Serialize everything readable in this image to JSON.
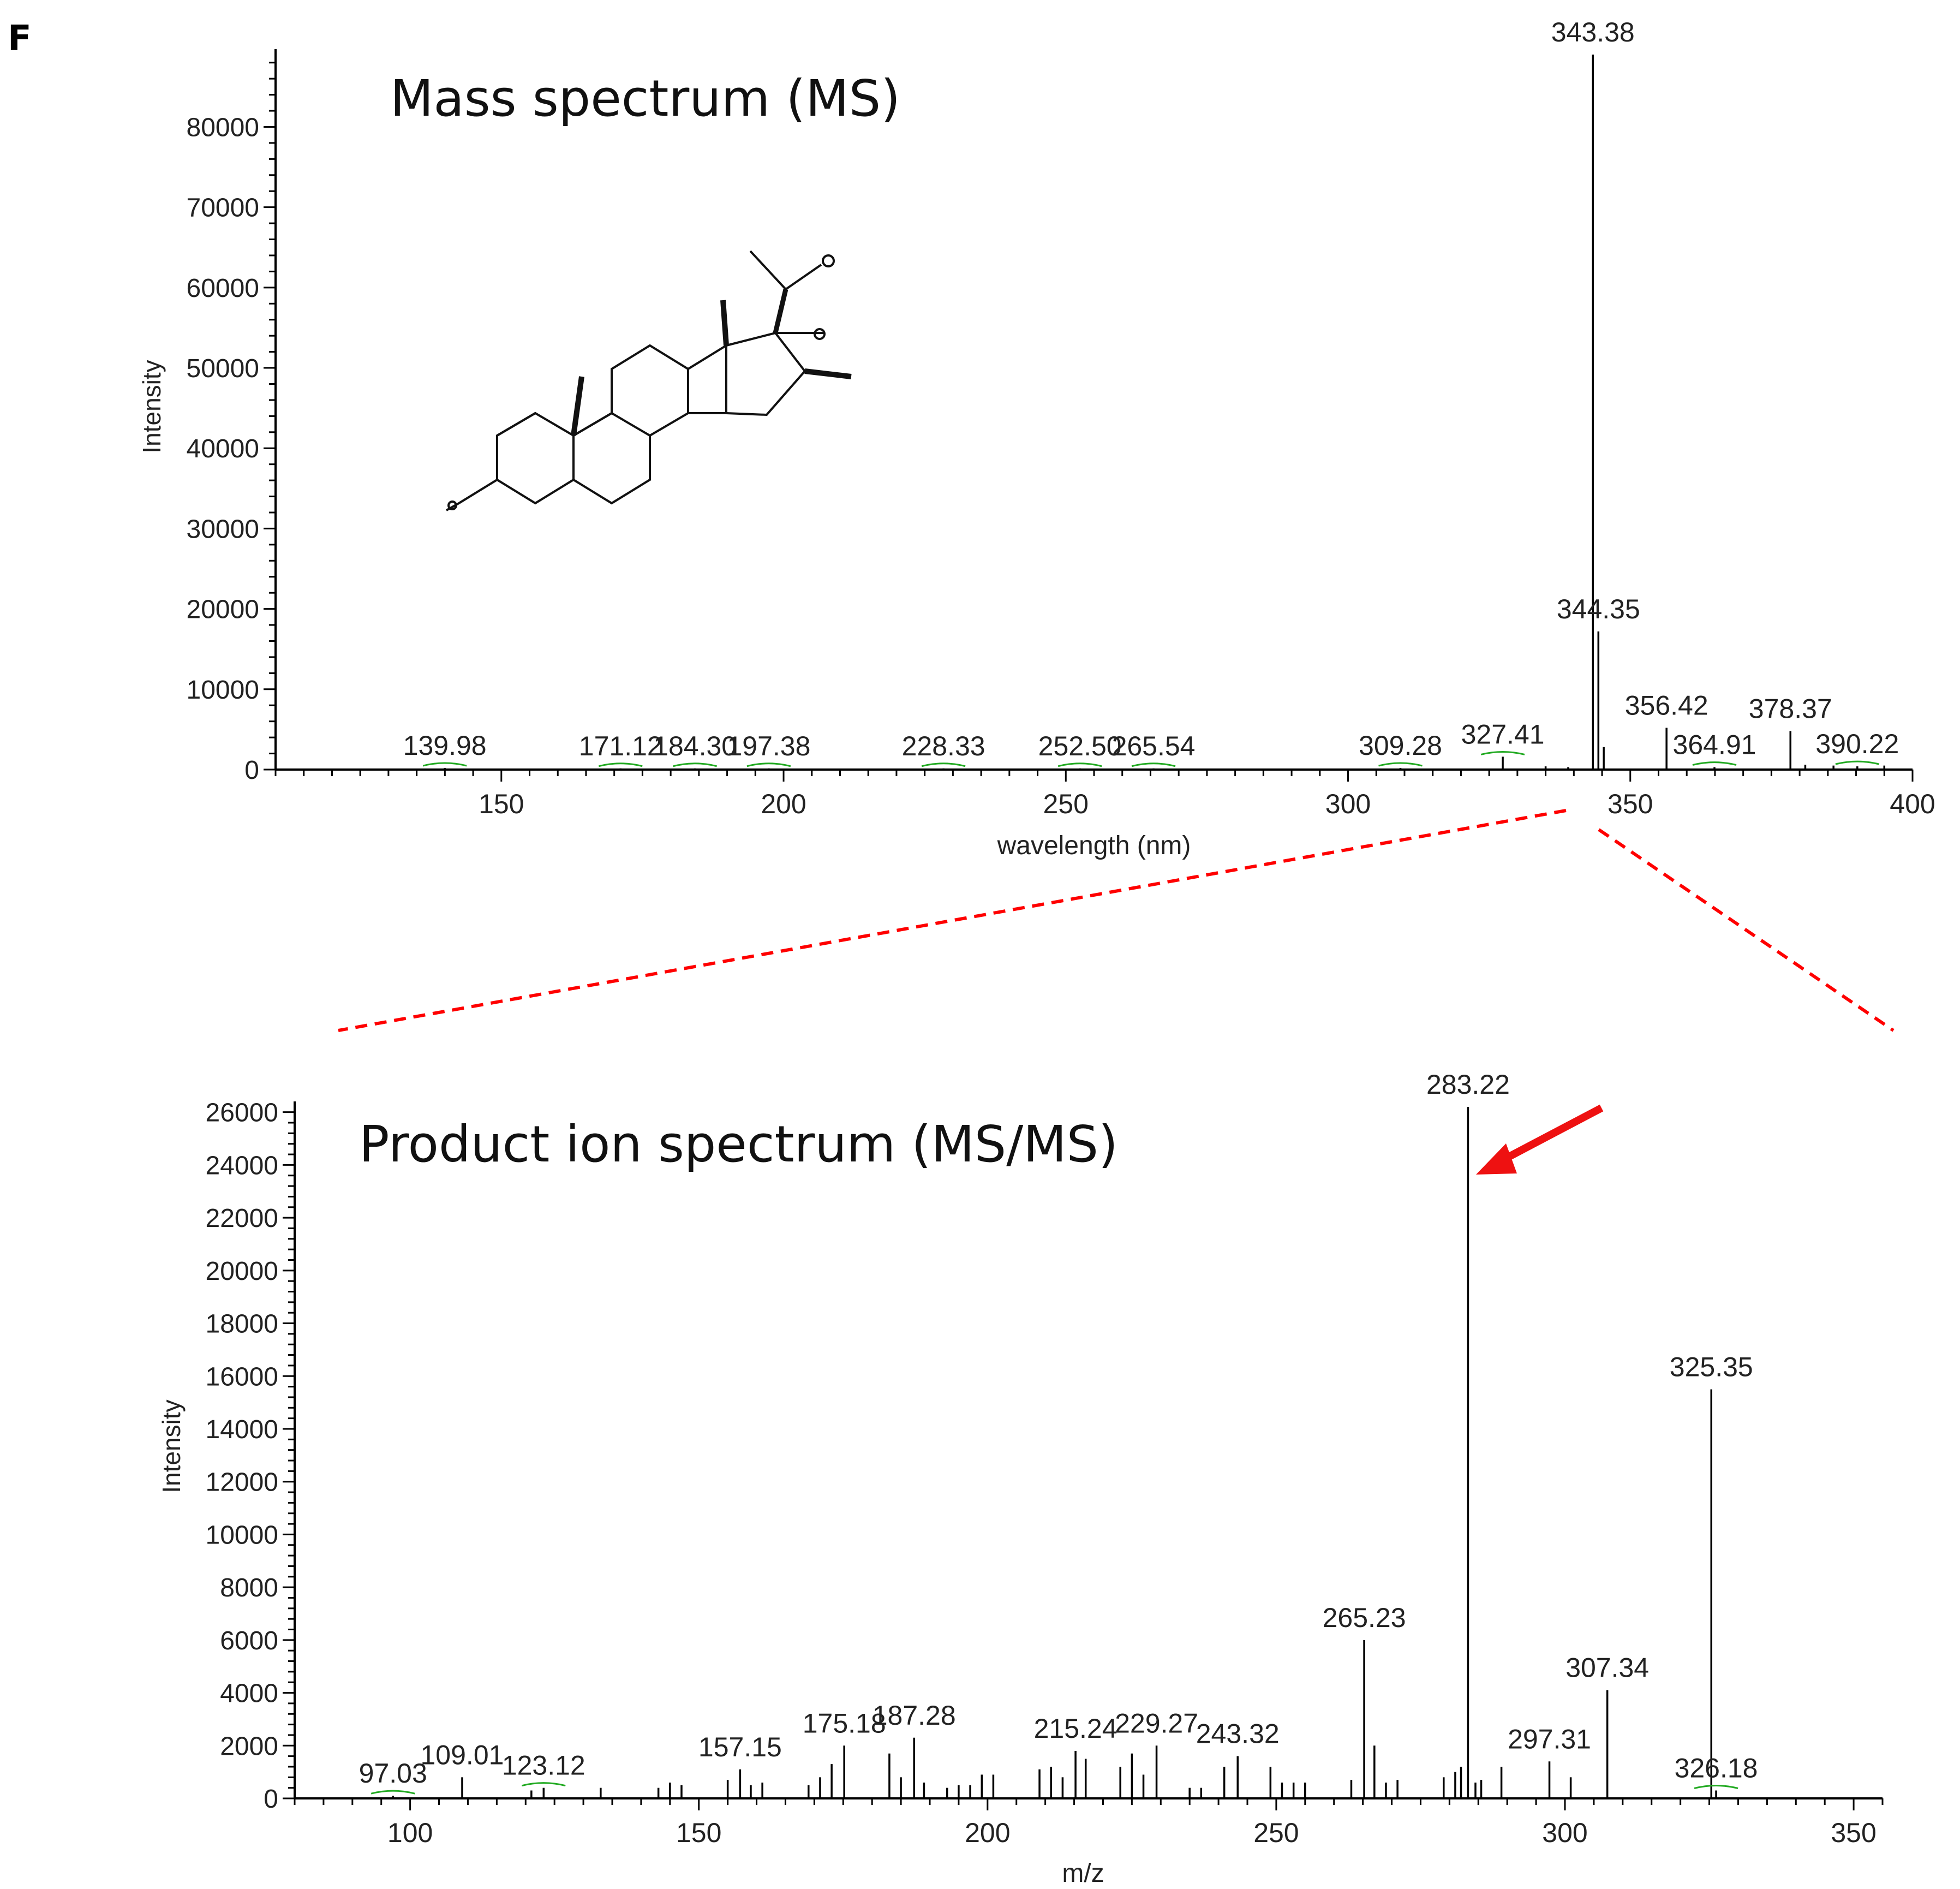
{
  "panel_label": "F",
  "colors": {
    "axis": "#000000",
    "peak": "#000000",
    "annotation_bracket": "#22aa22",
    "zoom_line": "#ff0000",
    "arrow": "#ee1111"
  },
  "chart_data": [
    {
      "type": "bar",
      "title": "Mass spectrum (MS)",
      "xlabel": "wavelength (nm)",
      "ylabel": "Intensity",
      "xlim": [
        110,
        400
      ],
      "ylim": [
        0,
        89000
      ],
      "xticks": [
        "150",
        "200",
        "250",
        "300",
        "350",
        "400"
      ],
      "yticks": [
        "0",
        "10000",
        "20000",
        "30000",
        "40000",
        "50000",
        "60000",
        "70000",
        "80000"
      ],
      "grid": false,
      "structure_icon": "steroid-epoxide-structure",
      "peaks": [
        {
          "x": 139.98,
          "y": 200,
          "label": "139.98"
        },
        {
          "x": 171.12,
          "y": 150,
          "label": "171.12"
        },
        {
          "x": 184.3,
          "y": 150,
          "label": "184.30"
        },
        {
          "x": 197.38,
          "y": 150,
          "label": "197.38"
        },
        {
          "x": 228.33,
          "y": 150,
          "label": "228.33"
        },
        {
          "x": 252.5,
          "y": 150,
          "label": "252.50"
        },
        {
          "x": 265.54,
          "y": 150,
          "label": "265.54"
        },
        {
          "x": 309.28,
          "y": 200,
          "label": "309.28"
        },
        {
          "x": 327.41,
          "y": 1600,
          "label": "327.41"
        },
        {
          "x": 335.0,
          "y": 400,
          "label": ""
        },
        {
          "x": 339.0,
          "y": 300,
          "label": ""
        },
        {
          "x": 343.38,
          "y": 89000,
          "label": "343.38"
        },
        {
          "x": 344.35,
          "y": 17200,
          "label": "344.35"
        },
        {
          "x": 345.3,
          "y": 2800,
          "label": ""
        },
        {
          "x": 356.42,
          "y": 5200,
          "label": "356.42"
        },
        {
          "x": 364.91,
          "y": 300,
          "label": "364.91"
        },
        {
          "x": 378.37,
          "y": 4800,
          "label": "378.37"
        },
        {
          "x": 381.0,
          "y": 600,
          "label": ""
        },
        {
          "x": 386.0,
          "y": 500,
          "label": ""
        },
        {
          "x": 390.22,
          "y": 400,
          "label": "390.22"
        },
        {
          "x": 395.0,
          "y": 500,
          "label": ""
        }
      ]
    },
    {
      "type": "bar",
      "title": "Product ion spectrum (MS/MS)",
      "xlabel": "m/z",
      "ylabel": "Intensity",
      "xlim": [
        80,
        355
      ],
      "ylim": [
        0,
        26200
      ],
      "xticks": [
        "100",
        "150",
        "200",
        "250",
        "300",
        "350"
      ],
      "yticks": [
        "0",
        "2000",
        "4000",
        "6000",
        "8000",
        "10000",
        "12000",
        "14000",
        "16000",
        "18000",
        "20000",
        "22000",
        "24000",
        "26000"
      ],
      "grid": false,
      "peaks": [
        {
          "x": 97.03,
          "y": 100,
          "label": "97.03"
        },
        {
          "x": 109.01,
          "y": 800,
          "label": "109.01"
        },
        {
          "x": 121.0,
          "y": 300,
          "label": ""
        },
        {
          "x": 123.12,
          "y": 400,
          "label": "123.12"
        },
        {
          "x": 133.0,
          "y": 400,
          "label": ""
        },
        {
          "x": 143.0,
          "y": 400,
          "label": ""
        },
        {
          "x": 145.0,
          "y": 600,
          "label": ""
        },
        {
          "x": 147.0,
          "y": 500,
          "label": ""
        },
        {
          "x": 155.0,
          "y": 700,
          "label": ""
        },
        {
          "x": 157.15,
          "y": 1100,
          "label": "157.15"
        },
        {
          "x": 159.0,
          "y": 500,
          "label": ""
        },
        {
          "x": 161.0,
          "y": 600,
          "label": ""
        },
        {
          "x": 169.0,
          "y": 500,
          "label": ""
        },
        {
          "x": 171.0,
          "y": 800,
          "label": ""
        },
        {
          "x": 173.0,
          "y": 1300,
          "label": ""
        },
        {
          "x": 175.18,
          "y": 2000,
          "label": "175.18"
        },
        {
          "x": 183.0,
          "y": 1700,
          "label": ""
        },
        {
          "x": 185.0,
          "y": 800,
          "label": ""
        },
        {
          "x": 187.28,
          "y": 2300,
          "label": "187.28"
        },
        {
          "x": 189.0,
          "y": 600,
          "label": ""
        },
        {
          "x": 193.0,
          "y": 400,
          "label": ""
        },
        {
          "x": 195.0,
          "y": 500,
          "label": ""
        },
        {
          "x": 197.0,
          "y": 500,
          "label": ""
        },
        {
          "x": 199.0,
          "y": 900,
          "label": ""
        },
        {
          "x": 201.0,
          "y": 900,
          "label": ""
        },
        {
          "x": 209.0,
          "y": 1100,
          "label": ""
        },
        {
          "x": 211.0,
          "y": 1200,
          "label": ""
        },
        {
          "x": 213.0,
          "y": 800,
          "label": ""
        },
        {
          "x": 215.24,
          "y": 1800,
          "label": "215.24"
        },
        {
          "x": 217.0,
          "y": 1500,
          "label": ""
        },
        {
          "x": 223.0,
          "y": 1200,
          "label": ""
        },
        {
          "x": 225.0,
          "y": 1700,
          "label": ""
        },
        {
          "x": 227.0,
          "y": 900,
          "label": ""
        },
        {
          "x": 229.27,
          "y": 2000,
          "label": "229.27"
        },
        {
          "x": 235.0,
          "y": 400,
          "label": ""
        },
        {
          "x": 237.0,
          "y": 400,
          "label": ""
        },
        {
          "x": 241.0,
          "y": 1200,
          "label": ""
        },
        {
          "x": 243.32,
          "y": 1600,
          "label": "243.32"
        },
        {
          "x": 249.0,
          "y": 1200,
          "label": ""
        },
        {
          "x": 251.0,
          "y": 600,
          "label": ""
        },
        {
          "x": 253.0,
          "y": 600,
          "label": ""
        },
        {
          "x": 255.0,
          "y": 600,
          "label": ""
        },
        {
          "x": 263.0,
          "y": 700,
          "label": ""
        },
        {
          "x": 265.23,
          "y": 6000,
          "label": "265.23"
        },
        {
          "x": 267.0,
          "y": 2000,
          "label": ""
        },
        {
          "x": 269.0,
          "y": 600,
          "label": ""
        },
        {
          "x": 271.0,
          "y": 700,
          "label": ""
        },
        {
          "x": 279.0,
          "y": 800,
          "label": ""
        },
        {
          "x": 281.0,
          "y": 1000,
          "label": ""
        },
        {
          "x": 282.0,
          "y": 1200,
          "label": ""
        },
        {
          "x": 283.22,
          "y": 26200,
          "label": "283.22"
        },
        {
          "x": 284.5,
          "y": 600,
          "label": ""
        },
        {
          "x": 285.5,
          "y": 700,
          "label": ""
        },
        {
          "x": 289.0,
          "y": 1200,
          "label": ""
        },
        {
          "x": 297.31,
          "y": 1400,
          "label": "297.31"
        },
        {
          "x": 301.0,
          "y": 800,
          "label": ""
        },
        {
          "x": 307.34,
          "y": 4100,
          "label": "307.34"
        },
        {
          "x": 325.35,
          "y": 15500,
          "label": "325.35"
        },
        {
          "x": 326.18,
          "y": 300,
          "label": "326.18"
        }
      ]
    }
  ]
}
